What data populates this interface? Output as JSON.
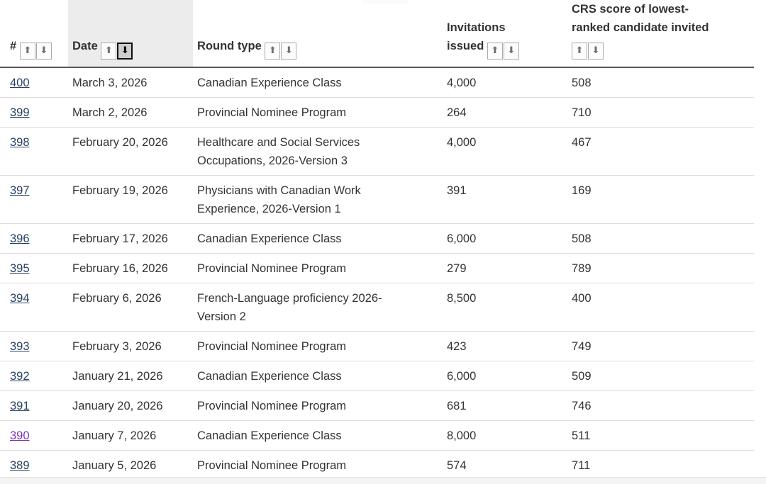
{
  "icons": {
    "sort_asc": "⬆",
    "sort_desc": "⬇"
  },
  "colors": {
    "link": "#284162",
    "link_visited": "#7834bc",
    "text": "#333333",
    "sorted_column_shade": "#ececec",
    "header_border": "#565656",
    "row_border": "#dddddd",
    "active_sort_bg": "#cdcdcd"
  },
  "table": {
    "sort": {
      "column": "date",
      "direction": "desc"
    },
    "columns": [
      {
        "key": "num",
        "label": "#"
      },
      {
        "key": "date",
        "label": "Date"
      },
      {
        "key": "type",
        "label": "Round type"
      },
      {
        "key": "inv",
        "label": "Invitations issued"
      },
      {
        "key": "crs",
        "label": "CRS score of lowest-ranked candidate invited"
      }
    ],
    "rows": [
      {
        "num": "400",
        "date": "March 3, 2026",
        "type": "Canadian Experience Class",
        "invitations": "4,000",
        "crs": "508",
        "visited": false
      },
      {
        "num": "399",
        "date": "March 2, 2026",
        "type": "Provincial Nominee Program",
        "invitations": "264",
        "crs": "710",
        "visited": false
      },
      {
        "num": "398",
        "date": "February 20, 2026",
        "type": "Healthcare and Social Services Occupations, 2026-Version 3",
        "invitations": "4,000",
        "crs": "467",
        "visited": false
      },
      {
        "num": "397",
        "date": "February 19, 2026",
        "type": "Physicians with Canadian Work Experience, 2026-Version 1",
        "invitations": "391",
        "crs": "169",
        "visited": false
      },
      {
        "num": "396",
        "date": "February 17, 2026",
        "type": "Canadian Experience Class",
        "invitations": "6,000",
        "crs": "508",
        "visited": false
      },
      {
        "num": "395",
        "date": "February 16, 2026",
        "type": "Provincial Nominee Program",
        "invitations": "279",
        "crs": "789",
        "visited": false
      },
      {
        "num": "394",
        "date": "February 6, 2026",
        "type": "French-Language proficiency 2026-Version 2",
        "invitations": "8,500",
        "crs": "400",
        "visited": false
      },
      {
        "num": "393",
        "date": "February 3, 2026",
        "type": "Provincial Nominee Program",
        "invitations": "423",
        "crs": "749",
        "visited": false
      },
      {
        "num": "392",
        "date": "January 21, 2026",
        "type": "Canadian Experience Class",
        "invitations": "6,000",
        "crs": "509",
        "visited": false
      },
      {
        "num": "391",
        "date": "January 20, 2026",
        "type": "Provincial Nominee Program",
        "invitations": "681",
        "crs": "746",
        "visited": false
      },
      {
        "num": "390",
        "date": "January 7, 2026",
        "type": "Canadian Experience Class",
        "invitations": "8,000",
        "crs": "511",
        "visited": true
      },
      {
        "num": "389",
        "date": "January 5, 2026",
        "type": "Provincial Nominee Program",
        "invitations": "574",
        "crs": "711",
        "visited": false
      }
    ]
  }
}
